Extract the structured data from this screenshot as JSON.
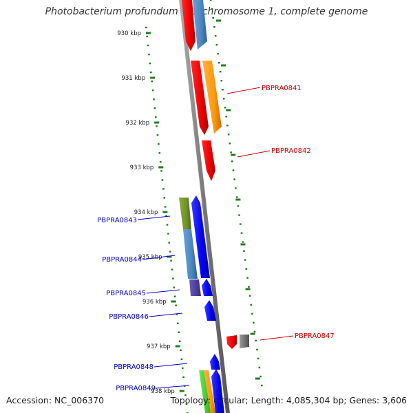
{
  "title": "Photobacterium profundum SS9 chromosome 1, complete genome",
  "footer": {
    "accession": "Accession: NC_006370",
    "summary": "Topology: circular; Length: 4,085,304 bp; Genes: 3,606"
  },
  "scale": {
    "ticks": [
      "930 kbp",
      "931 kbp",
      "932 kbp",
      "933 kbp",
      "934 kbp",
      "935 kbp",
      "936 kbp",
      "937 kbp",
      "938 kbp"
    ]
  },
  "genes": {
    "forward": [
      "PBPRA0841",
      "PBPRA0842",
      "PBPRA0847"
    ],
    "reverse": [
      "PBPRA0843",
      "PBPRA0844",
      "PBPRA0845",
      "PBPRA0846",
      "PBPRA0848",
      "PBPRA0849"
    ]
  },
  "colors": {
    "forward_label": "#cc0000",
    "reverse_label": "#0000cc",
    "tick": "#227a22",
    "backbone": "#7a7a7a"
  }
}
